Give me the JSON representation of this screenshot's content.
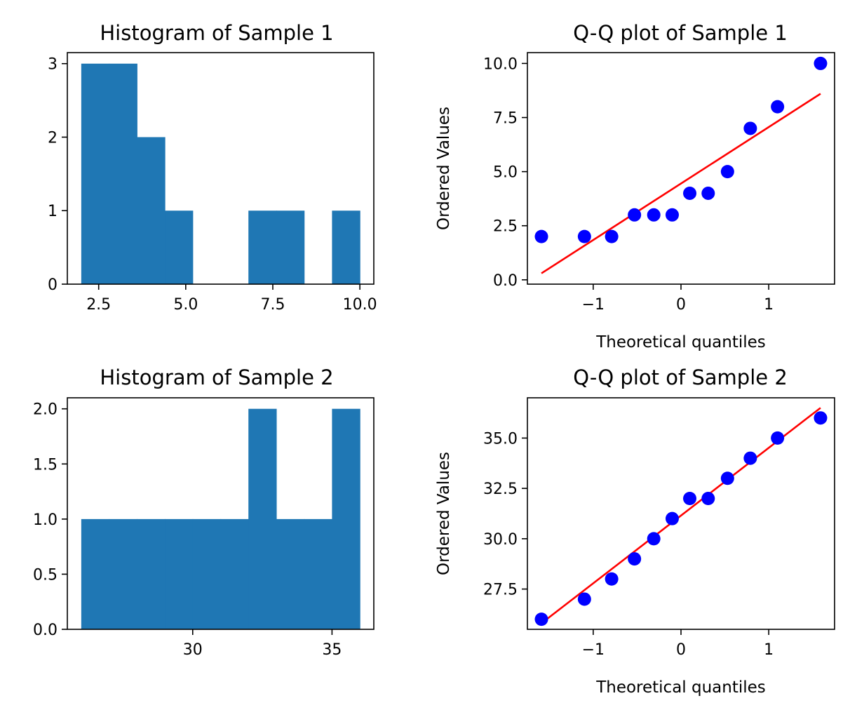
{
  "chart_data": [
    {
      "id": "hist1",
      "type": "bar",
      "title": "Histogram of Sample 1",
      "bin_edges": [
        2.0,
        2.8,
        3.6,
        4.4,
        5.2,
        6.0,
        6.8,
        7.6,
        8.4,
        9.2,
        10.0
      ],
      "counts": [
        3,
        3,
        2,
        1,
        0,
        0,
        1,
        1,
        0,
        1
      ],
      "xlim": [
        1.6,
        10.4
      ],
      "ylim": [
        0,
        3.15
      ],
      "xticks": [
        2.5,
        5.0,
        7.5,
        10.0
      ],
      "xtick_labels": [
        "2.5",
        "5.0",
        "7.5",
        "10.0"
      ],
      "yticks": [
        0,
        1,
        2,
        3
      ],
      "ytick_labels": [
        "0",
        "1",
        "2",
        "3"
      ],
      "xlabel": "",
      "ylabel": "",
      "color": "#1f77b4"
    },
    {
      "id": "qq1",
      "type": "scatter",
      "title": "Q-Q plot of Sample 1",
      "x": [
        -1.59,
        -1.1,
        -0.79,
        -0.53,
        -0.31,
        -0.1,
        0.1,
        0.31,
        0.53,
        0.79,
        1.1,
        1.59
      ],
      "y": [
        2,
        2,
        2,
        3,
        3,
        3,
        4,
        4,
        5,
        7,
        8,
        10
      ],
      "fit_line": {
        "x": [
          -1.59,
          1.59
        ],
        "y": [
          0.3,
          8.6
        ],
        "color": "#ff0000"
      },
      "point_color": "#0000ff",
      "xlim": [
        -1.75,
        1.75
      ],
      "ylim": [
        -0.2,
        10.5
      ],
      "xticks": [
        -1,
        0,
        1
      ],
      "xtick_labels": [
        "−1",
        "0",
        "1"
      ],
      "yticks": [
        0.0,
        2.5,
        5.0,
        7.5,
        10.0
      ],
      "ytick_labels": [
        "0.0",
        "2.5",
        "5.0",
        "7.5",
        "10.0"
      ],
      "xlabel": "Theoretical quantiles",
      "ylabel": "Ordered Values"
    },
    {
      "id": "hist2",
      "type": "bar",
      "title": "Histogram of Sample 2",
      "bin_edges": [
        26,
        27,
        28,
        29,
        30,
        31,
        32,
        33,
        34,
        35,
        36
      ],
      "counts": [
        1,
        1,
        1,
        1,
        1,
        1,
        2,
        1,
        1,
        2
      ],
      "xlim": [
        25.5,
        36.5
      ],
      "ylim": [
        0,
        2.1
      ],
      "xticks": [
        30,
        35
      ],
      "xtick_labels": [
        "30",
        "35"
      ],
      "yticks": [
        0.0,
        0.5,
        1.0,
        1.5,
        2.0
      ],
      "ytick_labels": [
        "0.0",
        "0.5",
        "1.0",
        "1.5",
        "2.0"
      ],
      "xlabel": "",
      "ylabel": "",
      "color": "#1f77b4"
    },
    {
      "id": "qq2",
      "type": "scatter",
      "title": "Q-Q plot of Sample 2",
      "x": [
        -1.59,
        -1.1,
        -0.79,
        -0.53,
        -0.31,
        -0.1,
        0.1,
        0.31,
        0.53,
        0.79,
        1.1,
        1.59
      ],
      "y": [
        26,
        27,
        28,
        29,
        30,
        31,
        32,
        32,
        33,
        34,
        35,
        36
      ],
      "fit_line": {
        "x": [
          -1.59,
          1.59
        ],
        "y": [
          25.8,
          36.5
        ],
        "color": "#ff0000"
      },
      "point_color": "#0000ff",
      "xlim": [
        -1.75,
        1.75
      ],
      "ylim": [
        25.5,
        37.0
      ],
      "xticks": [
        -1,
        0,
        1
      ],
      "xtick_labels": [
        "−1",
        "0",
        "1"
      ],
      "yticks": [
        27.5,
        30.0,
        32.5,
        35.0
      ],
      "ytick_labels": [
        "27.5",
        "30.0",
        "32.5",
        "35.0"
      ],
      "xlabel": "Theoretical quantiles",
      "ylabel": "Ordered Values"
    }
  ]
}
